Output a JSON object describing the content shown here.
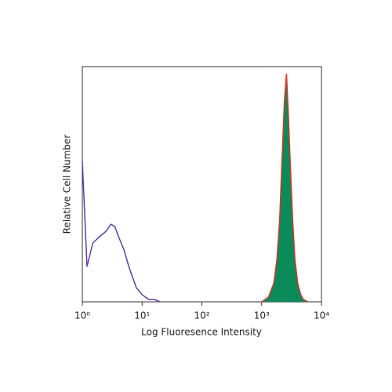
{
  "chart_data": {
    "type": "line",
    "xlabel": "Log Fluoresence Intensity",
    "ylabel": "Relative Cell Number",
    "xscale": "log",
    "xlim": [
      1,
      10000
    ],
    "xticks": [
      {
        "value": 1,
        "label": "10⁰"
      },
      {
        "value": 10,
        "label": "10¹"
      },
      {
        "value": 100,
        "label": "10²"
      },
      {
        "value": 1000,
        "label": "10³"
      },
      {
        "value": 10000,
        "label": "10⁴"
      }
    ],
    "ylim": [
      0,
      100
    ],
    "series": [
      {
        "color": "#5b3fa8",
        "x": [
          1,
          1.2,
          1.5,
          2,
          2.5,
          3,
          3.5,
          4,
          5,
          6,
          8,
          10,
          13,
          16,
          20
        ],
        "values": [
          60,
          15,
          25,
          28,
          30,
          33,
          32,
          28,
          22,
          15,
          6,
          3,
          1,
          1,
          0
        ]
      },
      {
        "color": "#d23a2a",
        "fill": "#0b8a5a",
        "x": [
          1000,
          1300,
          1600,
          1800,
          2000,
          2200,
          2400,
          2600,
          2800,
          3000,
          3300,
          3600,
          4000,
          4500,
          5000,
          6000
        ],
        "values": [
          0,
          2,
          8,
          18,
          35,
          62,
          85,
          97,
          80,
          60,
          35,
          18,
          8,
          3,
          1,
          0
        ]
      }
    ]
  }
}
